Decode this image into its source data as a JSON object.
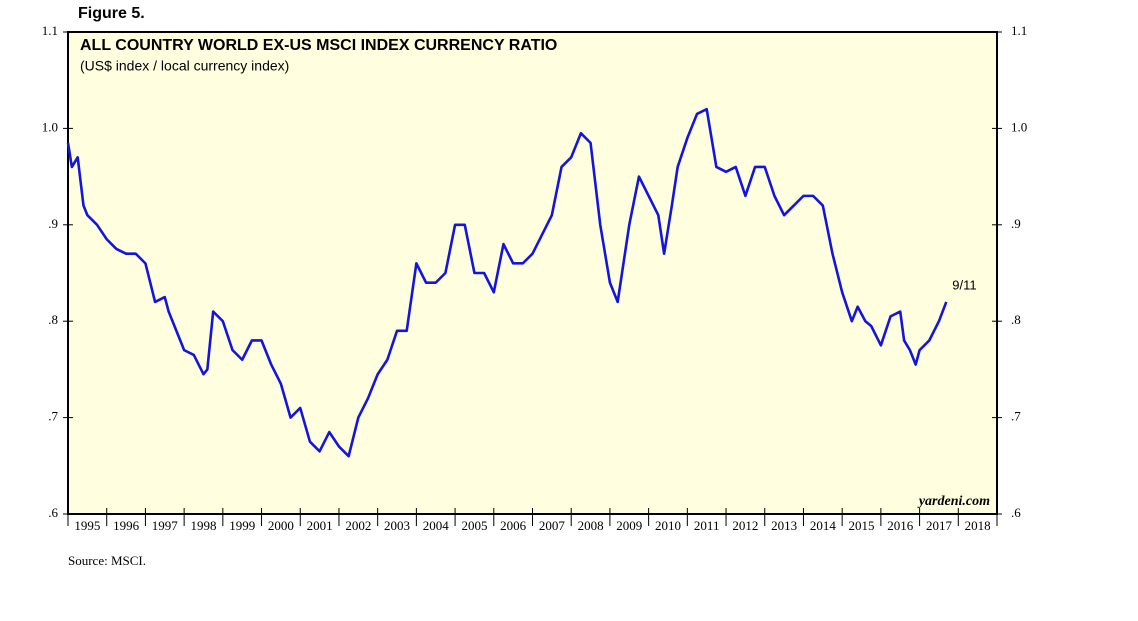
{
  "chart_data": {
    "type": "line",
    "figure_label": "Figure 5.",
    "title": "ALL COUNTRY WORLD EX-US MSCI INDEX CURRENCY RATIO",
    "subtitle": "(US$ index / local currency index)",
    "end_label": "9/11",
    "credit": "yardeni.com",
    "source": "Source: MSCI.",
    "color": "#1414e0",
    "x": [
      1995.0,
      1995.1,
      1995.25,
      1995.4,
      1995.5,
      1995.75,
      1996.0,
      1996.25,
      1996.5,
      1996.75,
      1997.0,
      1997.25,
      1997.5,
      1997.6,
      1997.75,
      1998.0,
      1998.25,
      1998.5,
      1998.6,
      1998.75,
      1999.0,
      1999.25,
      1999.5,
      1999.75,
      2000.0,
      2000.25,
      2000.5,
      2000.75,
      2001.0,
      2001.25,
      2001.5,
      2001.75,
      2002.0,
      2002.25,
      2002.5,
      2002.75,
      2003.0,
      2003.25,
      2003.5,
      2003.75,
      2004.0,
      2004.25,
      2004.5,
      2004.75,
      2005.0,
      2005.25,
      2005.5,
      2005.75,
      2006.0,
      2006.25,
      2006.5,
      2006.75,
      2007.0,
      2007.25,
      2007.5,
      2007.75,
      2008.0,
      2008.25,
      2008.5,
      2008.75,
      2009.0,
      2009.2,
      2009.5,
      2009.75,
      2010.0,
      2010.25,
      2010.4,
      2010.6,
      2010.75,
      2011.0,
      2011.25,
      2011.5,
      2011.75,
      2012.0,
      2012.25,
      2012.5,
      2012.75,
      2013.0,
      2013.25,
      2013.5,
      2013.75,
      2014.0,
      2014.25,
      2014.5,
      2014.75,
      2015.0,
      2015.25,
      2015.4,
      2015.6,
      2015.75,
      2016.0,
      2016.25,
      2016.5,
      2016.6,
      2016.75,
      2016.9,
      2017.0,
      2017.25,
      2017.5,
      2017.69
    ],
    "values": [
      0.985,
      0.96,
      0.97,
      0.92,
      0.91,
      0.9,
      0.885,
      0.875,
      0.87,
      0.87,
      0.86,
      0.82,
      0.825,
      0.81,
      0.795,
      0.77,
      0.765,
      0.745,
      0.75,
      0.81,
      0.8,
      0.77,
      0.76,
      0.78,
      0.78,
      0.755,
      0.735,
      0.7,
      0.71,
      0.675,
      0.665,
      0.685,
      0.67,
      0.66,
      0.7,
      0.72,
      0.745,
      0.76,
      0.79,
      0.79,
      0.86,
      0.84,
      0.84,
      0.85,
      0.9,
      0.9,
      0.85,
      0.85,
      0.83,
      0.88,
      0.86,
      0.86,
      0.87,
      0.89,
      0.91,
      0.96,
      0.97,
      0.995,
      0.985,
      0.9,
      0.84,
      0.82,
      0.9,
      0.95,
      0.93,
      0.91,
      0.87,
      0.92,
      0.96,
      0.99,
      1.015,
      1.02,
      0.96,
      0.955,
      0.96,
      0.93,
      0.96,
      0.96,
      0.93,
      0.91,
      0.92,
      0.93,
      0.93,
      0.92,
      0.87,
      0.83,
      0.8,
      0.815,
      0.8,
      0.795,
      0.775,
      0.805,
      0.81,
      0.78,
      0.77,
      0.755,
      0.77,
      0.78,
      0.8,
      0.82
    ],
    "xlim": [
      1995,
      2019
    ],
    "xticks": [
      1995,
      1996,
      1997,
      1998,
      1999,
      2000,
      2001,
      2002,
      2003,
      2004,
      2005,
      2006,
      2007,
      2008,
      2009,
      2010,
      2011,
      2012,
      2013,
      2014,
      2015,
      2016,
      2017,
      2018,
      2019
    ],
    "x_tick_labels": [
      "1995",
      "1996",
      "1997",
      "1998",
      "1999",
      "2000",
      "2001",
      "2002",
      "2003",
      "2004",
      "2005",
      "2006",
      "2007",
      "2008",
      "2009",
      "2010",
      "2011",
      "2012",
      "2013",
      "2014",
      "2015",
      "2016",
      "2017",
      "2018"
    ],
    "ylim": [
      0.6,
      1.1
    ],
    "yticks": [
      {
        "value": 0.6,
        "label": ".6"
      },
      {
        "value": 0.7,
        "label": ".7"
      },
      {
        "value": 0.8,
        "label": ".8"
      },
      {
        "value": 0.9,
        "label": ".9"
      },
      {
        "value": 1.0,
        "label": "1.0"
      },
      1.1
    ],
    "y2lim": [
      0.6,
      1.1
    ],
    "y2ticks": [
      {
        "value": 0.6,
        "label": ".6"
      },
      {
        "value": 0.7,
        "label": ".7"
      },
      {
        "value": 0.8,
        "label": ".8"
      },
      {
        "value": 0.9,
        "label": ".9"
      },
      {
        "value": 1.0,
        "label": "1.0"
      },
      1.1
    ]
  }
}
